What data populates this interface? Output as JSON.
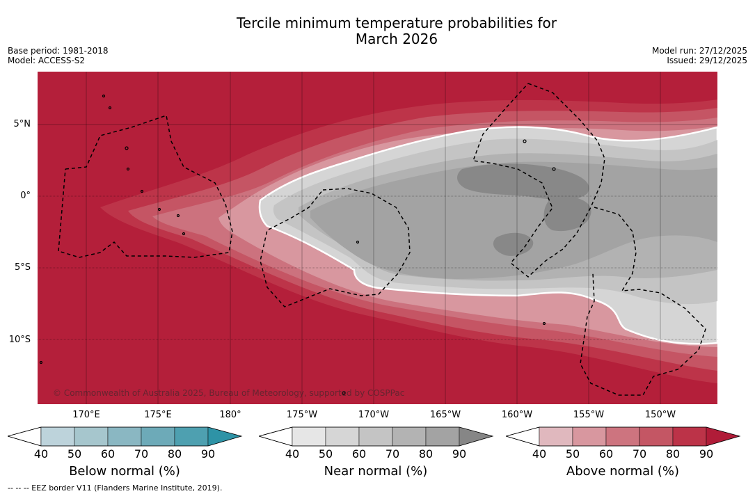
{
  "title_line1": "Tercile minimum temperature probabilities for",
  "title_line2": "March 2026",
  "left_info": {
    "base_period": "Base period: 1981-2018",
    "model": "Model: ACCESS-S2"
  },
  "right_info": {
    "model_run": "Model run: 27/12/2025",
    "issued": "Issued: 29/12/2025"
  },
  "lat_labels": [
    "5°N",
    "0°",
    "5°S",
    "10°S"
  ],
  "lon_labels": [
    "170°E",
    "175°E",
    "180°",
    "175°W",
    "170°W",
    "165°W",
    "160°W",
    "155°W",
    "150°W"
  ],
  "copyright": "© Commonwealth of Australia 2025, Bureau of Meteorology, supported by COSPPac",
  "colorbars": [
    {
      "label": "Below normal (%)",
      "ticks": [
        "40",
        "50",
        "60",
        "70",
        "80",
        "90"
      ],
      "colors": [
        "#bdd3db",
        "#a6c6cd",
        "#8ab7c2",
        "#6daab8",
        "#4ea0b0",
        "#2e93a6"
      ]
    },
    {
      "label": "Near normal (%)",
      "ticks": [
        "40",
        "50",
        "60",
        "70",
        "80",
        "90"
      ],
      "colors": [
        "#e6e6e6",
        "#d6d6d6",
        "#c4c4c4",
        "#b3b3b3",
        "#a3a3a3",
        "#868686"
      ]
    },
    {
      "label": "Above normal (%)",
      "ticks": [
        "40",
        "50",
        "60",
        "70",
        "80",
        "90"
      ],
      "colors": [
        "#e0b8be",
        "#d8979f",
        "#cd747f",
        "#c45664",
        "#bc3348",
        "#b01c38"
      ]
    }
  ],
  "footnote": "--  --  -- EEZ border V11 (Flanders Marine Institute, 2019).",
  "map_colors": {
    "above_90": "#b41f3a",
    "above_80": "#bd3449",
    "above_70": "#c55564",
    "above_60": "#cc727e",
    "above_50": "#d8979f",
    "near_50": "#d5d5d5",
    "near_60": "#c4c4c4",
    "near_70": "#b2b2b2",
    "near_80": "#a3a3a3",
    "near_90": "#888888"
  }
}
